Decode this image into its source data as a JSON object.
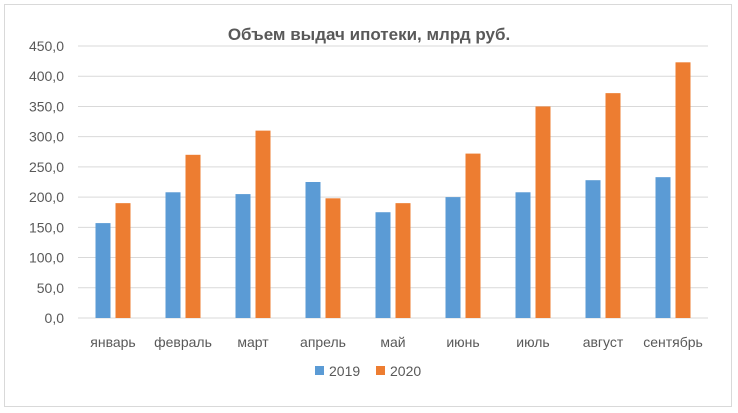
{
  "chart_data": {
    "type": "bar",
    "title": "Объем выдач ипотеки, млрд руб.",
    "xlabel": "",
    "ylabel": "",
    "categories": [
      "январь",
      "февраль",
      "март",
      "апрель",
      "май",
      "июнь",
      "июль",
      "август",
      "сентябрь"
    ],
    "series": [
      {
        "name": "2019",
        "color": "#5b9bd5",
        "values": [
          157,
          208,
          205,
          225,
          175,
          200,
          208,
          228,
          233
        ]
      },
      {
        "name": "2020",
        "color": "#ed7d31",
        "values": [
          190,
          270,
          310,
          198,
          190,
          272,
          350,
          372,
          423
        ]
      }
    ],
    "ylim": [
      0,
      450
    ],
    "yticks": [
      0,
      50,
      100,
      150,
      200,
      250,
      300,
      350,
      400,
      450
    ],
    "ytick_labels": [
      "0,0",
      "50,0",
      "100,0",
      "150,0",
      "200,0",
      "250,0",
      "300,0",
      "350,0",
      "400,0",
      "450,0"
    ],
    "grid": true,
    "legend": "bottom"
  }
}
